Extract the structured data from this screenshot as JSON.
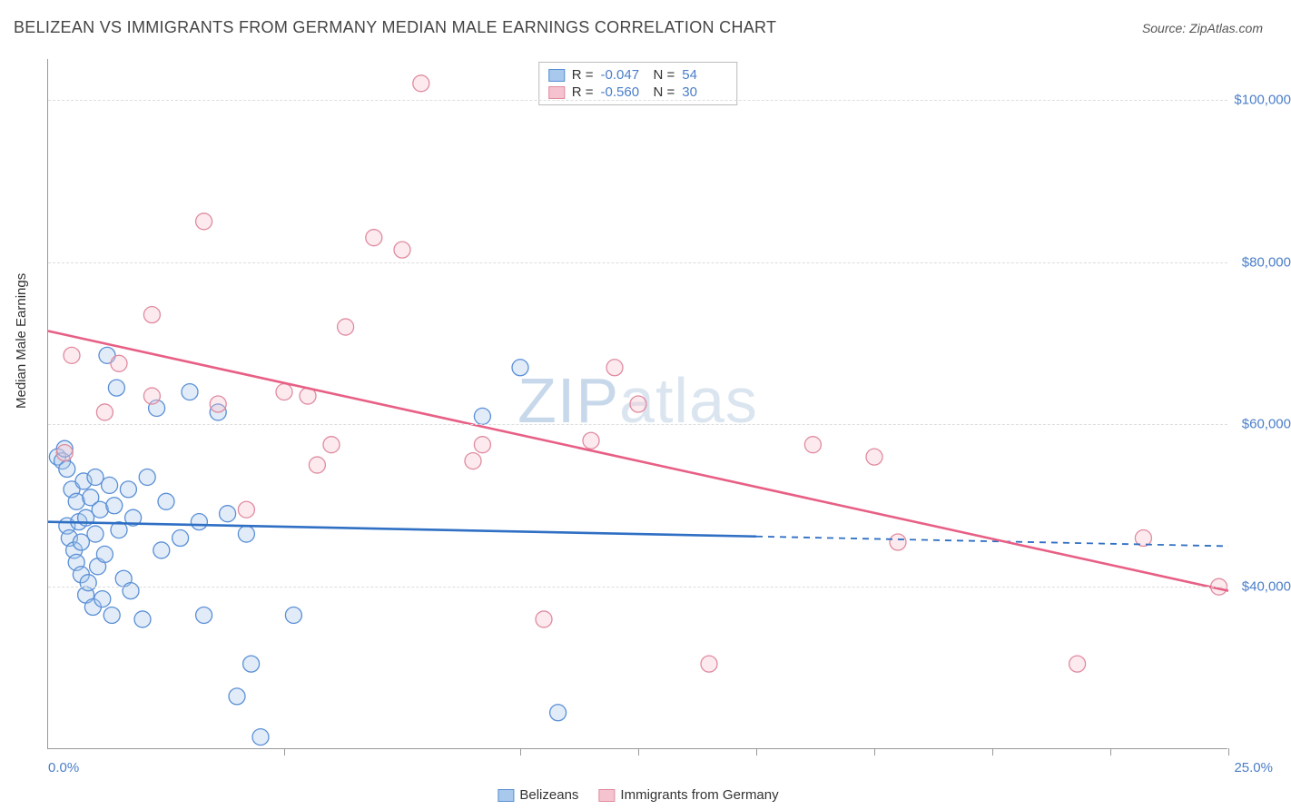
{
  "header": {
    "title": "BELIZEAN VS IMMIGRANTS FROM GERMANY MEDIAN MALE EARNINGS CORRELATION CHART",
    "source_prefix": "Source: ",
    "source_name": "ZipAtlas.com"
  },
  "chart": {
    "type": "scatter",
    "ylabel": "Median Male Earnings",
    "xlim": [
      0,
      25
    ],
    "ylim": [
      20000,
      105000
    ],
    "x_ticks": [
      0,
      5,
      10,
      12.5,
      15,
      17.5,
      20,
      22.5,
      25
    ],
    "x_tick_labels_shown": {
      "first": "0.0%",
      "last": "25.0%"
    },
    "y_ticks": [
      40000,
      60000,
      80000,
      100000
    ],
    "y_tick_labels": [
      "$40,000",
      "$60,000",
      "$80,000",
      "$100,000"
    ],
    "grid_color": "#dddddd",
    "axis_color": "#999999",
    "background_color": "#ffffff",
    "marker_radius": 9,
    "marker_fill_opacity": 0.35,
    "marker_stroke_width": 1.3,
    "trend_line_width": 2.6,
    "series": [
      {
        "name": "Belizeans",
        "color_stroke": "#5a8fd6",
        "color_fill": "#a8c8ec",
        "trend_color": "#2f6fc4",
        "R": "-0.047",
        "N": "54",
        "trend": {
          "x1": 0,
          "y1": 48000,
          "x2_solid": 15,
          "y2_solid": 46200,
          "x2_dash": 25,
          "y2_dash": 45000
        },
        "points": [
          [
            0.2,
            56000
          ],
          [
            0.3,
            55500
          ],
          [
            0.35,
            57000
          ],
          [
            0.4,
            54500
          ],
          [
            0.4,
            47500
          ],
          [
            0.45,
            46000
          ],
          [
            0.5,
            52000
          ],
          [
            0.55,
            44500
          ],
          [
            0.6,
            50500
          ],
          [
            0.6,
            43000
          ],
          [
            0.65,
            48000
          ],
          [
            0.7,
            45500
          ],
          [
            0.7,
            41500
          ],
          [
            0.75,
            53000
          ],
          [
            0.8,
            48500
          ],
          [
            0.8,
            39000
          ],
          [
            0.85,
            40500
          ],
          [
            0.9,
            51000
          ],
          [
            0.95,
            37500
          ],
          [
            1.0,
            46500
          ],
          [
            1.0,
            53500
          ],
          [
            1.05,
            42500
          ],
          [
            1.1,
            49500
          ],
          [
            1.15,
            38500
          ],
          [
            1.2,
            44000
          ],
          [
            1.25,
            68500
          ],
          [
            1.3,
            52500
          ],
          [
            1.35,
            36500
          ],
          [
            1.4,
            50000
          ],
          [
            1.45,
            64500
          ],
          [
            1.5,
            47000
          ],
          [
            1.6,
            41000
          ],
          [
            1.7,
            52000
          ],
          [
            1.75,
            39500
          ],
          [
            1.8,
            48500
          ],
          [
            2.0,
            36000
          ],
          [
            2.1,
            53500
          ],
          [
            2.3,
            62000
          ],
          [
            2.4,
            44500
          ],
          [
            2.5,
            50500
          ],
          [
            2.8,
            46000
          ],
          [
            3.0,
            64000
          ],
          [
            3.2,
            48000
          ],
          [
            3.3,
            36500
          ],
          [
            3.6,
            61500
          ],
          [
            3.8,
            49000
          ],
          [
            4.0,
            26500
          ],
          [
            4.2,
            46500
          ],
          [
            4.3,
            30500
          ],
          [
            4.5,
            21500
          ],
          [
            5.2,
            36500
          ],
          [
            9.2,
            61000
          ],
          [
            10.0,
            67000
          ],
          [
            10.8,
            24500
          ]
        ]
      },
      {
        "name": "Immigrants from Germany",
        "color_stroke": "#e08ba0",
        "color_fill": "#f5c3cf",
        "trend_color": "#e85f85",
        "R": "-0.560",
        "N": "30",
        "trend": {
          "x1": 0,
          "y1": 71500,
          "x2_solid": 25,
          "y2_solid": 39500,
          "x2_dash": 25,
          "y2_dash": 39500
        },
        "points": [
          [
            0.35,
            56500
          ],
          [
            0.5,
            68500
          ],
          [
            1.2,
            61500
          ],
          [
            1.5,
            67500
          ],
          [
            2.2,
            63500
          ],
          [
            2.2,
            73500
          ],
          [
            3.3,
            85000
          ],
          [
            3.6,
            62500
          ],
          [
            4.2,
            49500
          ],
          [
            5.0,
            64000
          ],
          [
            5.5,
            63500
          ],
          [
            5.7,
            55000
          ],
          [
            6.0,
            57500
          ],
          [
            6.3,
            72000
          ],
          [
            6.9,
            83000
          ],
          [
            7.5,
            81500
          ],
          [
            7.9,
            102000
          ],
          [
            9.0,
            55500
          ],
          [
            9.2,
            57500
          ],
          [
            10.5,
            36000
          ],
          [
            11.5,
            58000
          ],
          [
            12.0,
            67000
          ],
          [
            12.5,
            62500
          ],
          [
            14.0,
            30500
          ],
          [
            16.2,
            57500
          ],
          [
            17.5,
            56000
          ],
          [
            18.0,
            45500
          ],
          [
            21.8,
            30500
          ],
          [
            23.2,
            46000
          ],
          [
            24.8,
            40000
          ]
        ]
      }
    ],
    "watermark": "ZIPatlas",
    "stats_box": {
      "r_label": "R =",
      "n_label": "N ="
    }
  }
}
